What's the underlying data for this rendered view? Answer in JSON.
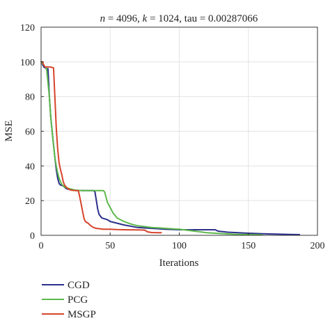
{
  "chart_data": {
    "type": "line",
    "title_parts": [
      {
        "text": "n",
        "italic": true
      },
      {
        "text": " = 4096, ",
        "italic": false
      },
      {
        "text": "k",
        "italic": true
      },
      {
        "text": " = 1024, tau = 0.00287066",
        "italic": false
      }
    ],
    "xlabel": "Iterations",
    "ylabel": "MSE",
    "xlim": [
      0,
      200
    ],
    "ylim": [
      0,
      120
    ],
    "xticks": [
      0,
      50,
      100,
      150,
      200
    ],
    "yticks": [
      0,
      20,
      40,
      60,
      80,
      100,
      120
    ],
    "grid": true,
    "legend_position": "bottom-left outside",
    "series": [
      {
        "name": "CGD",
        "color": "#2b2f8c",
        "points": [
          [
            0,
            100
          ],
          [
            2,
            97
          ],
          [
            4,
            96
          ],
          [
            5,
            96
          ],
          [
            6,
            80
          ],
          [
            7,
            68
          ],
          [
            8,
            60
          ],
          [
            9,
            52
          ],
          [
            10,
            45
          ],
          [
            11,
            38
          ],
          [
            12,
            33
          ],
          [
            13,
            30
          ],
          [
            14,
            29
          ],
          [
            16,
            28.5
          ],
          [
            18,
            27
          ],
          [
            20,
            26.5
          ],
          [
            25,
            26
          ],
          [
            30,
            25.8
          ],
          [
            35,
            25.8
          ],
          [
            38,
            25.8
          ],
          [
            39,
            25
          ],
          [
            40,
            20
          ],
          [
            41,
            15
          ],
          [
            42,
            12
          ],
          [
            44,
            10
          ],
          [
            46,
            9.5
          ],
          [
            48,
            9
          ],
          [
            50,
            8
          ],
          [
            55,
            7
          ],
          [
            60,
            6
          ],
          [
            70,
            4.5
          ],
          [
            80,
            4
          ],
          [
            90,
            3.5
          ],
          [
            100,
            3.2
          ],
          [
            110,
            3.2
          ],
          [
            120,
            3.2
          ],
          [
            126,
            3.2
          ],
          [
            128,
            2.4
          ],
          [
            135,
            1.8
          ],
          [
            150,
            1.2
          ],
          [
            160,
            0.9
          ],
          [
            170,
            0.7
          ],
          [
            180,
            0.5
          ],
          [
            187,
            0.4
          ]
        ]
      },
      {
        "name": "PCG",
        "color": "#5cb84a",
        "points": [
          [
            0,
            100
          ],
          [
            2,
            98
          ],
          [
            4,
            96
          ],
          [
            6,
            80
          ],
          [
            7,
            68
          ],
          [
            8,
            60
          ],
          [
            9,
            52
          ],
          [
            10,
            45
          ],
          [
            11,
            40
          ],
          [
            12,
            36
          ],
          [
            13,
            33
          ],
          [
            14,
            31
          ],
          [
            15,
            29.5
          ],
          [
            16,
            28.5
          ],
          [
            18,
            27.5
          ],
          [
            20,
            27
          ],
          [
            25,
            26
          ],
          [
            30,
            25.8
          ],
          [
            40,
            25.8
          ],
          [
            45,
            25.8
          ],
          [
            46,
            25
          ],
          [
            47,
            22
          ],
          [
            48,
            19
          ],
          [
            50,
            16
          ],
          [
            52,
            13
          ],
          [
            55,
            10
          ],
          [
            60,
            8
          ],
          [
            65,
            6.5
          ],
          [
            70,
            5.5
          ],
          [
            80,
            4.5
          ],
          [
            90,
            4
          ],
          [
            100,
            3.5
          ],
          [
            110,
            2.5
          ],
          [
            120,
            1.5
          ],
          [
            130,
            1
          ],
          [
            140,
            0.6
          ],
          [
            150,
            0.4
          ],
          [
            160,
            0.3
          ]
        ]
      },
      {
        "name": "MSGP",
        "color": "#d6432a",
        "points": [
          [
            0,
            100
          ],
          [
            1,
            100
          ],
          [
            2,
            98
          ],
          [
            3,
            97
          ],
          [
            5,
            97
          ],
          [
            7,
            97
          ],
          [
            9,
            96.5
          ],
          [
            10,
            80
          ],
          [
            11,
            62
          ],
          [
            12,
            50
          ],
          [
            13,
            42
          ],
          [
            14,
            38
          ],
          [
            15,
            35
          ],
          [
            16,
            31
          ],
          [
            17,
            29
          ],
          [
            18,
            28
          ],
          [
            20,
            26.5
          ],
          [
            22,
            26
          ],
          [
            25,
            25.8
          ],
          [
            27,
            25.7
          ],
          [
            28,
            22
          ],
          [
            29,
            18
          ],
          [
            30,
            14
          ],
          [
            31,
            10
          ],
          [
            32,
            8
          ],
          [
            34,
            7
          ],
          [
            36,
            5.5
          ],
          [
            38,
            4.5
          ],
          [
            40,
            4
          ],
          [
            45,
            3.5
          ],
          [
            50,
            3.5
          ],
          [
            55,
            3.3
          ],
          [
            60,
            3.2
          ],
          [
            70,
            3.1
          ],
          [
            75,
            3
          ],
          [
            77,
            2
          ],
          [
            80,
            1.6
          ],
          [
            84,
            1.5
          ],
          [
            87,
            1.5
          ]
        ]
      }
    ]
  }
}
